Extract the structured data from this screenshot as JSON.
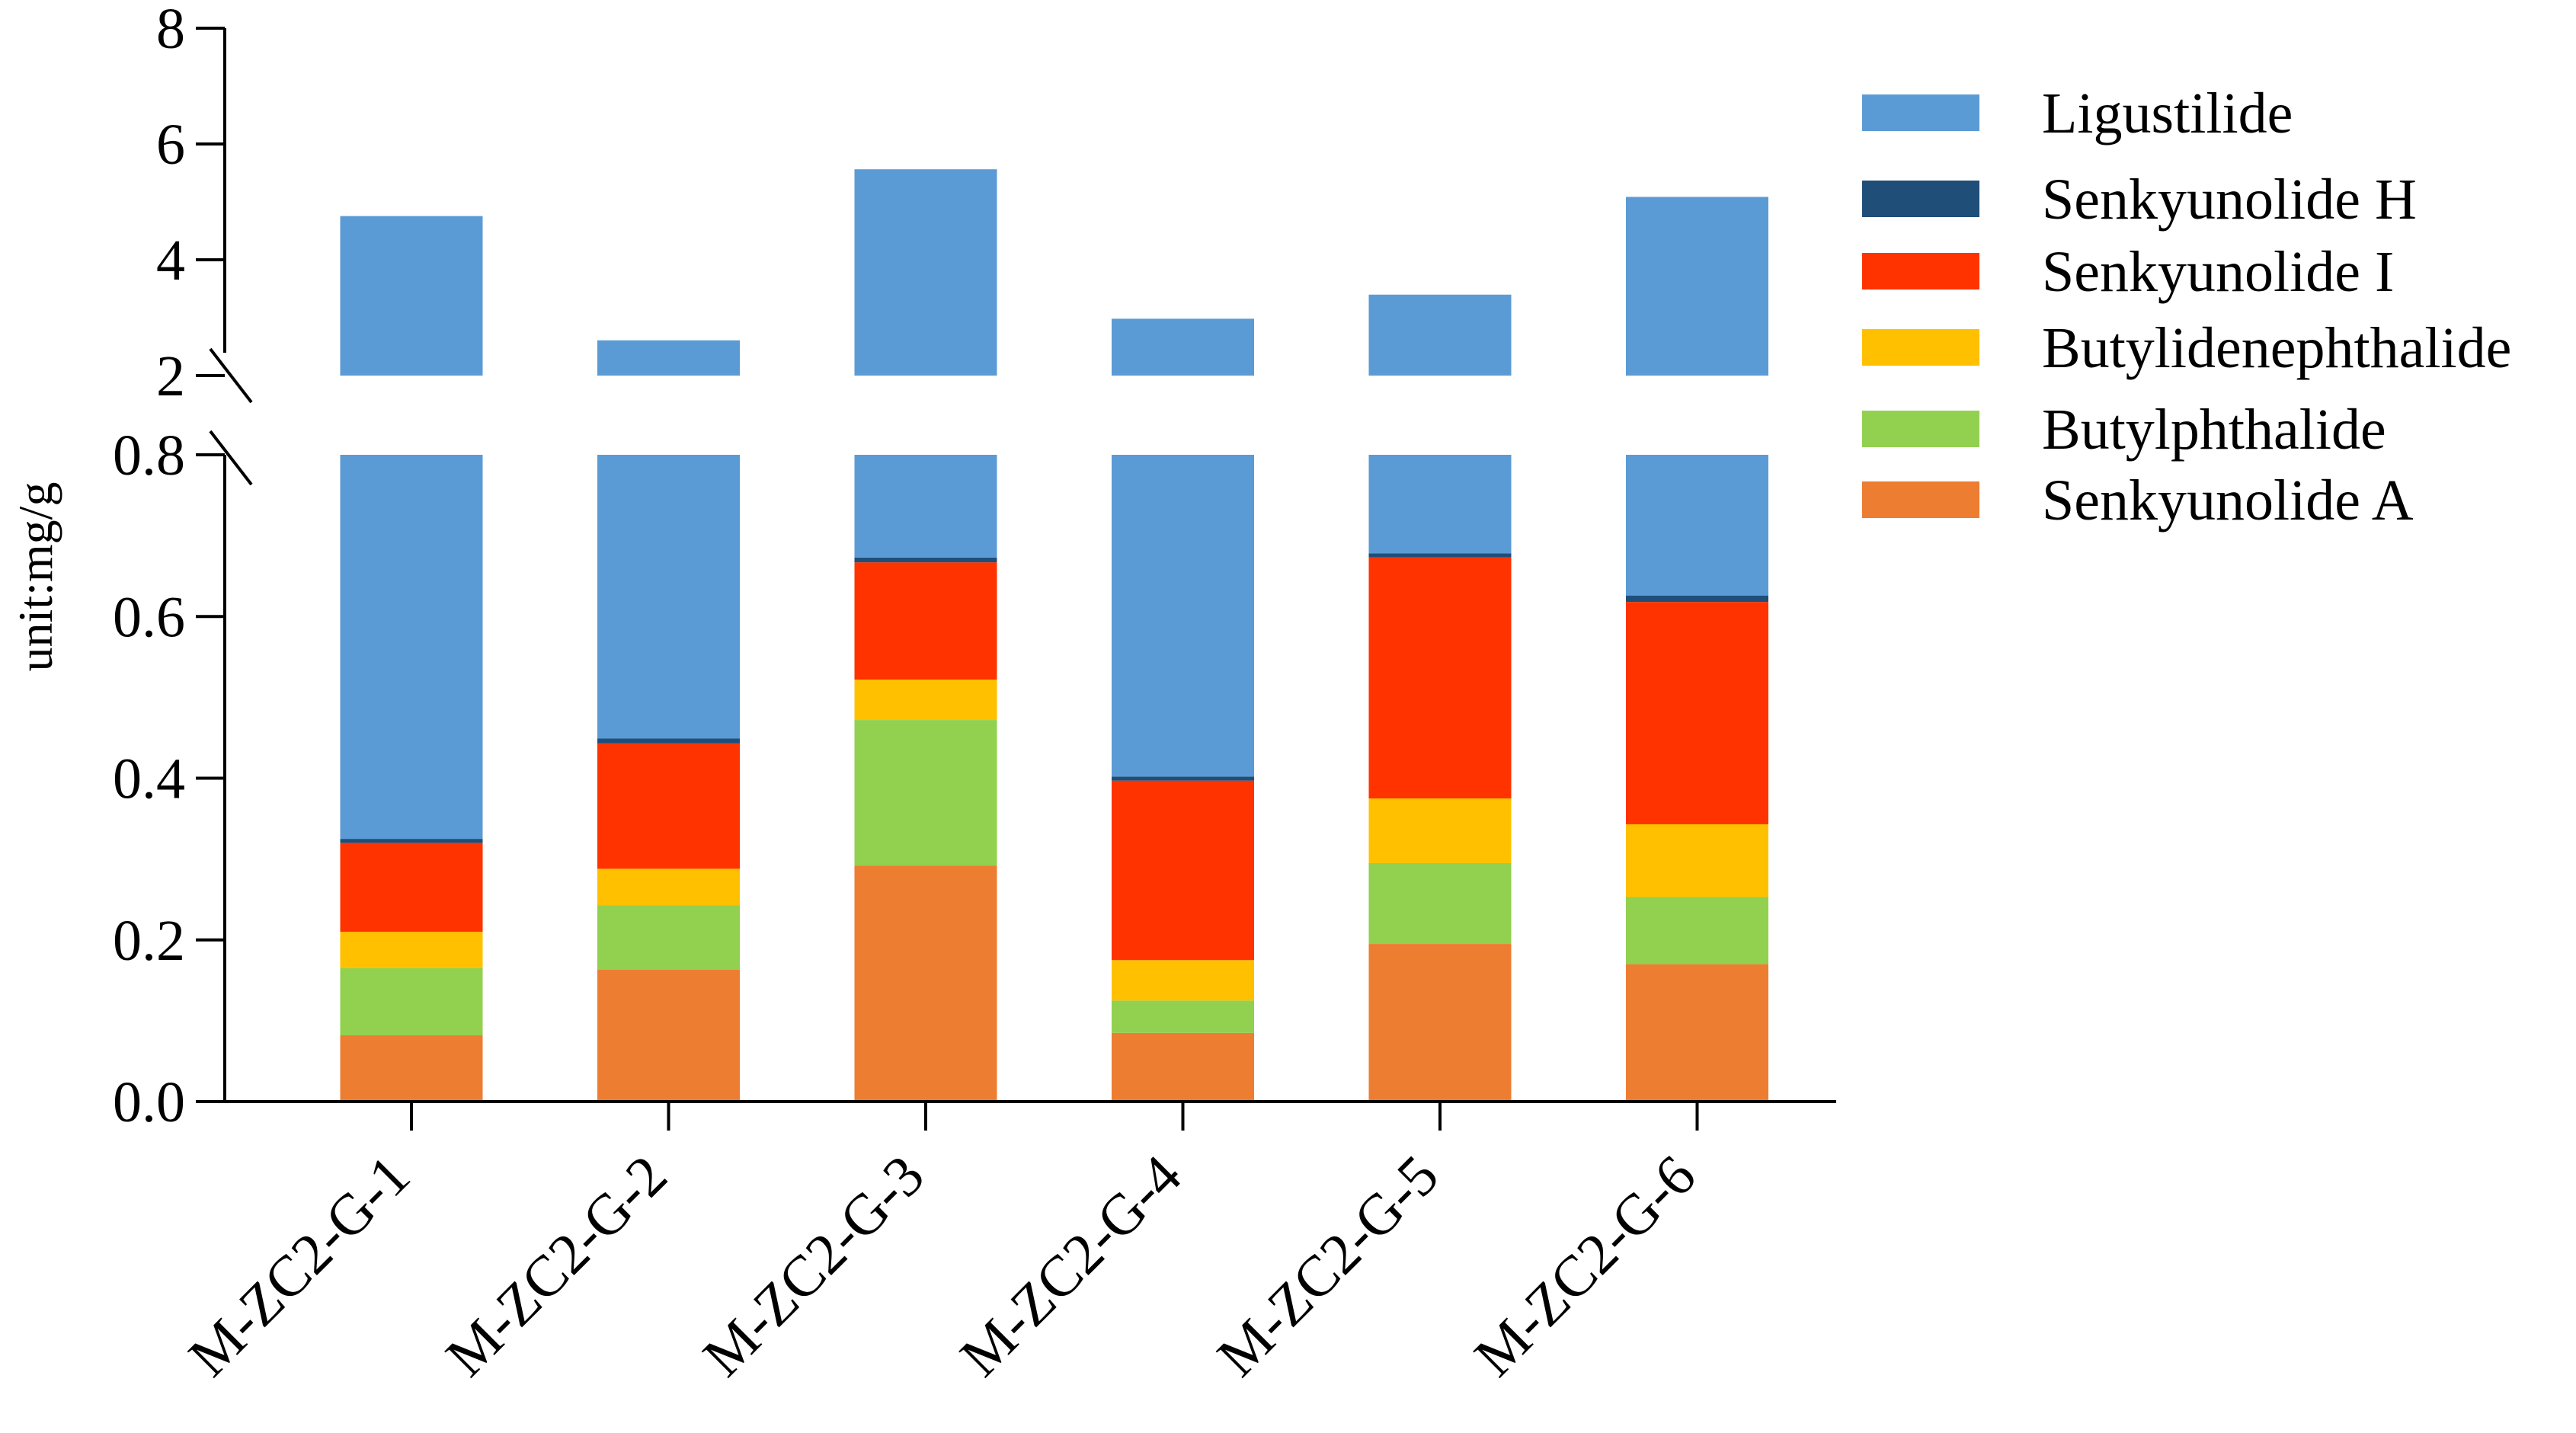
{
  "chart_data": {
    "type": "bar",
    "stacked": true,
    "broken_axis": true,
    "ylabel": "unit:mg/g",
    "categories": [
      "M-ZC2-G-1",
      "M-ZC2-G-2",
      "M-ZC2-G-3",
      "M-ZC2-G-4",
      "M-ZC2-G-5",
      "M-ZC2-G-6"
    ],
    "y_lower_range": [
      0,
      0.8
    ],
    "y_upper_range": [
      2,
      8
    ],
    "y_lower_ticks": [
      "0.0",
      "0.2",
      "0.4",
      "0.6",
      "0.8"
    ],
    "y_upper_ticks": [
      "2",
      "4",
      "6",
      "8"
    ],
    "legend_position": "right",
    "series": [
      {
        "name": "Senkyunolide A",
        "color": "#ED7D31",
        "values": [
          0.082,
          0.163,
          0.292,
          0.085,
          0.195,
          0.17
        ]
      },
      {
        "name": "Butylphthalide",
        "color": "#92D050",
        "values": [
          0.083,
          0.08,
          0.18,
          0.04,
          0.1,
          0.083
        ]
      },
      {
        "name": "Butylidenephthalide",
        "color": "#FFC000",
        "values": [
          0.045,
          0.045,
          0.05,
          0.05,
          0.08,
          0.09
        ]
      },
      {
        "name": "Senkyunolide I",
        "color": "#FF3300",
        "values": [
          0.11,
          0.155,
          0.145,
          0.222,
          0.298,
          0.275
        ]
      },
      {
        "name": "Senkyunolide H",
        "color": "#1F4E79",
        "values": [
          0.005,
          0.006,
          0.006,
          0.005,
          0.005,
          0.008
        ]
      },
      {
        "name": "Ligustilide",
        "color": "#5B9BD5",
        "values": [
          4.43,
          2.16,
          4.89,
          2.58,
          2.72,
          4.46
        ]
      }
    ],
    "legend_order": [
      "Ligustilide",
      "Senkyunolide H",
      "Senkyunolide I",
      "Butylidenephthalide",
      "Butylphthalide",
      "Senkyunolide A"
    ]
  }
}
